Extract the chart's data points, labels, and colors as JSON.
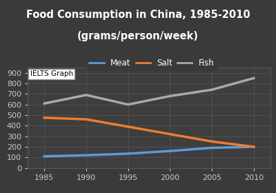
{
  "title_line1": "Food Consumption in China, 1985-2010",
  "title_line2": "(grams/person/week)",
  "years": [
    1985,
    1990,
    1995,
    2000,
    2005,
    2010
  ],
  "meat": [
    110,
    120,
    135,
    160,
    190,
    200
  ],
  "salt": [
    475,
    460,
    390,
    320,
    250,
    200
  ],
  "fish": [
    610,
    690,
    600,
    680,
    740,
    850
  ],
  "meat_color": "#5B9BD5",
  "salt_color": "#ED7D31",
  "fish_color": "#AAAAAA",
  "background_color": "#3A3A3A",
  "plot_background_color": "#3E3E3E",
  "grid_color": "#585858",
  "text_color": "#FFFFFF",
  "tick_color": "#CCCCCC",
  "ylim": [
    0,
    950
  ],
  "yticks": [
    0,
    100,
    200,
    300,
    400,
    500,
    600,
    700,
    800,
    900
  ],
  "xlim": [
    1983,
    2012
  ],
  "xticks": [
    1985,
    1990,
    1995,
    2000,
    2005,
    2010
  ],
  "legend_labels": [
    "Meat",
    "Salt",
    "Fish"
  ],
  "watermark_text": "IELTS Graph",
  "title_fontsize": 10.5,
  "tick_fontsize": 8,
  "legend_fontsize": 8.5,
  "linewidth": 2.5
}
